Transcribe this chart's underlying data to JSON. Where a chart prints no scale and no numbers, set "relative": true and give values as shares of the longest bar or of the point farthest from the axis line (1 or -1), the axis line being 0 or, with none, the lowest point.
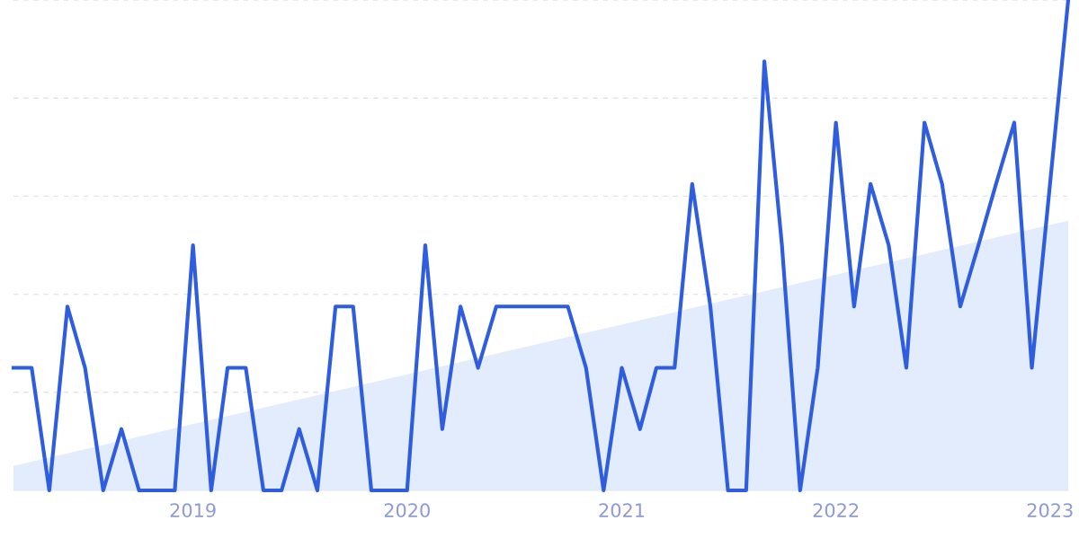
{
  "chart_data": {
    "type": "line",
    "relative": true,
    "grid": "y",
    "x": [
      "2018-03",
      "2018-04",
      "2018-05",
      "2018-06",
      "2018-07",
      "2018-08",
      "2018-09",
      "2018-10",
      "2018-11",
      "2018-12",
      "2019-01",
      "2019-02",
      "2019-03",
      "2019-04",
      "2019-05",
      "2019-06",
      "2019-07",
      "2019-08",
      "2019-09",
      "2019-10",
      "2019-11",
      "2019-12",
      "2020-01",
      "2020-02",
      "2020-03",
      "2020-04",
      "2020-05",
      "2020-06",
      "2020-07",
      "2020-08",
      "2020-09",
      "2020-10",
      "2020-11",
      "2020-12",
      "2021-01",
      "2021-02",
      "2021-03",
      "2021-04",
      "2021-05",
      "2021-06",
      "2021-07",
      "2021-08",
      "2021-09",
      "2021-10",
      "2021-11",
      "2021-12",
      "2022-01",
      "2022-02",
      "2022-03",
      "2022-04",
      "2022-05",
      "2022-06",
      "2022-07",
      "2022-08",
      "2022-09",
      "2022-10",
      "2022-11",
      "2022-12",
      "2023-01",
      "2023-02"
    ],
    "xlim": [
      "2018-03",
      "2023-02"
    ],
    "xticks": [
      {
        "value": "2019",
        "label": "2019"
      },
      {
        "value": "2020",
        "label": "2020"
      },
      {
        "value": "2021",
        "label": "2021"
      },
      {
        "value": "2022",
        "label": "2022"
      },
      {
        "value": "2023",
        "label": "2023"
      }
    ],
    "series": [
      {
        "type": "area",
        "color": "#e3ecfc",
        "x": [
          "2018-03",
          "2023-02"
        ],
        "values": [
          0.05,
          0.55
        ]
      },
      {
        "color": "#2f5de0",
        "values": [
          0.25,
          0.25,
          0,
          0.375,
          0.25,
          0,
          0.125,
          0,
          0,
          0,
          0.5,
          0,
          0.25,
          0.25,
          0,
          0,
          0.125,
          0,
          0.375,
          0.375,
          0,
          0,
          0,
          0.5,
          0.125,
          0.375,
          0.25,
          0.375,
          0.375,
          0.375,
          0.375,
          0.375,
          0.25,
          0,
          0.25,
          0.125,
          0.25,
          0.25,
          0.625,
          0.375,
          0,
          0,
          0.875,
          0.5,
          0,
          0.25,
          0.75,
          0.375,
          0.625,
          0.5,
          0.25,
          0.75,
          0.625,
          0.375,
          0.5,
          0.625,
          0.75,
          0.25,
          0.625,
          1
        ]
      }
    ]
  }
}
